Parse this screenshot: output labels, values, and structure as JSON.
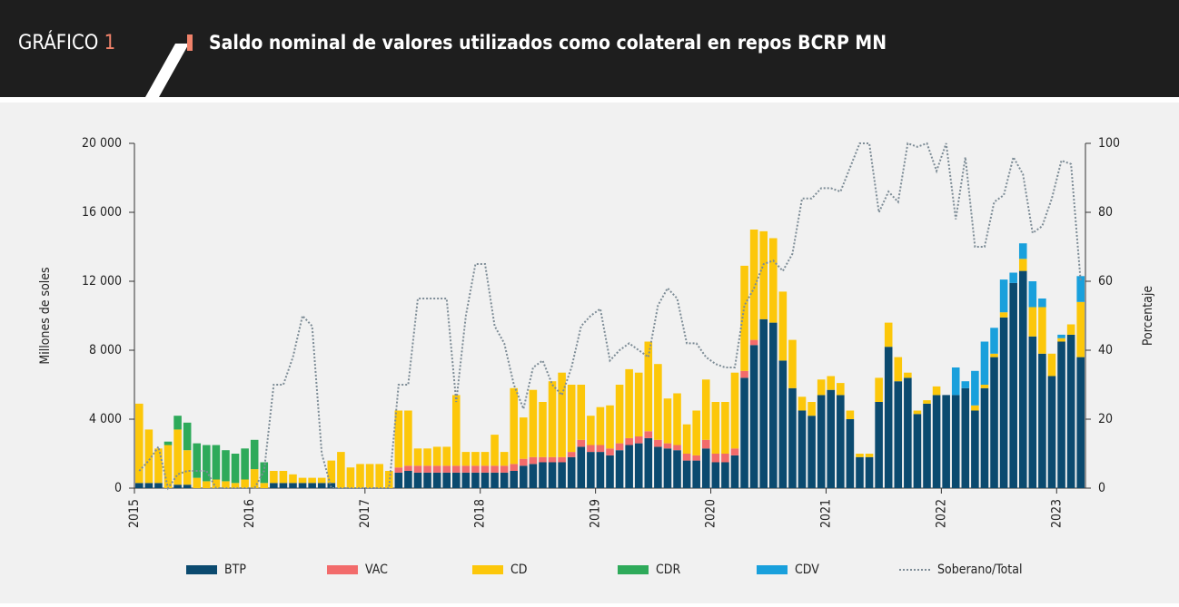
{
  "header": {
    "label": "GRÁFICO",
    "number": "1"
  },
  "chart_data": {
    "type": "bar",
    "stacked": true,
    "title": "Saldo nominal de valores utilizados como colateral en repos BCRP MN",
    "ylabel": "Millones de soles",
    "y2label": "Porcentaje",
    "categories": [
      "2015",
      null,
      null,
      null,
      null,
      null,
      null,
      null,
      null,
      null,
      null,
      null,
      "2016",
      null,
      null,
      null,
      null,
      null,
      null,
      null,
      null,
      null,
      null,
      null,
      "2017",
      null,
      null,
      null,
      null,
      null,
      null,
      null,
      null,
      null,
      null,
      null,
      "2018",
      null,
      null,
      null,
      null,
      null,
      null,
      null,
      null,
      null,
      null,
      null,
      "2019",
      null,
      null,
      null,
      null,
      null,
      null,
      null,
      null,
      null,
      null,
      null,
      "2020",
      null,
      null,
      null,
      null,
      null,
      null,
      null,
      null,
      null,
      null,
      null,
      "2021",
      null,
      null,
      null,
      null,
      null,
      null,
      null,
      null,
      null,
      null,
      null,
      "2022",
      null,
      null,
      null,
      null,
      null,
      null,
      null,
      null,
      null,
      null,
      null,
      "2023",
      null,
      null
    ],
    "ylim": [
      0,
      20000
    ],
    "yticks": [
      0,
      {
        "value": 4000,
        "label": "4 000"
      },
      {
        "value": 8000,
        "label": "8 000"
      },
      {
        "value": 12000,
        "label": "12 000"
      },
      {
        "value": 16000,
        "label": "16 000"
      },
      {
        "value": 20000,
        "label": "20 000"
      }
    ],
    "y2lim": [
      0,
      100
    ],
    "y2ticks": [
      0,
      20,
      40,
      60,
      80,
      100
    ],
    "series": [
      {
        "name": "BTP",
        "color": "#0b4a6f",
        "values": [
          300,
          300,
          300,
          0,
          200,
          200,
          0,
          0,
          0,
          0,
          0,
          0,
          0,
          0,
          300,
          300,
          300,
          300,
          300,
          300,
          300,
          0,
          0,
          0,
          0,
          0,
          0,
          900,
          1000,
          900,
          900,
          900,
          900,
          900,
          900,
          900,
          900,
          900,
          900,
          1000,
          1300,
          1400,
          1500,
          1500,
          1500,
          1800,
          2400,
          2100,
          2100,
          1900,
          2200,
          2500,
          2600,
          2900,
          2400,
          2300,
          2200,
          1600,
          1600,
          2300,
          1500,
          1500,
          1900,
          6400,
          8300,
          9800,
          9600,
          7400,
          5800,
          4500,
          4200,
          5400,
          5700,
          5400,
          4000,
          1800,
          1800,
          5000,
          8200,
          6200,
          6400,
          4300,
          4900,
          5400,
          5400,
          5400,
          5800,
          4500,
          5800,
          7600,
          9900,
          11900,
          12600,
          8800,
          7800,
          6500,
          8500,
          8900,
          7600
        ]
      },
      {
        "name": "VAC",
        "color": "#f26b6b",
        "values": [
          0,
          0,
          0,
          0,
          0,
          0,
          0,
          0,
          0,
          0,
          0,
          0,
          0,
          0,
          0,
          0,
          0,
          0,
          0,
          0,
          0,
          0,
          0,
          0,
          0,
          0,
          0,
          300,
          300,
          400,
          400,
          400,
          400,
          400,
          400,
          400,
          400,
          400,
          400,
          400,
          400,
          400,
          300,
          300,
          300,
          300,
          400,
          400,
          400,
          400,
          400,
          400,
          400,
          400,
          400,
          300,
          300,
          400,
          300,
          500,
          500,
          500,
          400,
          400,
          300,
          0,
          0,
          0,
          0,
          0,
          0,
          0,
          0,
          0,
          0,
          0,
          0,
          0,
          0,
          0,
          0,
          0,
          0,
          0,
          0,
          0,
          0,
          0,
          0,
          0,
          0,
          0,
          0,
          0,
          0,
          0,
          0,
          0,
          0
        ]
      },
      {
        "name": "CD",
        "color": "#fcc70a",
        "values": [
          4600,
          3100,
          2000,
          2500,
          3200,
          2000,
          600,
          400,
          500,
          400,
          300,
          500,
          1100,
          300,
          700,
          700,
          500,
          300,
          300,
          300,
          1300,
          2100,
          1200,
          1400,
          1400,
          1400,
          1000,
          3300,
          3200,
          1000,
          1000,
          1100,
          1100,
          4100,
          800,
          800,
          800,
          1800,
          800,
          4400,
          2400,
          3900,
          3200,
          4400,
          4900,
          3900,
          3200,
          1700,
          2200,
          2500,
          3400,
          4000,
          3700,
          5200,
          4400,
          2600,
          3000,
          1700,
          2600,
          3500,
          3000,
          3000,
          4400,
          6100,
          6400,
          5100,
          4900,
          4000,
          2800,
          800,
          800,
          900,
          800,
          700,
          500,
          200,
          200,
          1400,
          1400,
          1400,
          300,
          200,
          200,
          500,
          0,
          0,
          0,
          300,
          200,
          200,
          300,
          0,
          700,
          1700,
          2700,
          1300,
          200,
          600,
          3200
        ]
      },
      {
        "name": "CDR",
        "color": "#2eaa5a",
        "values": [
          0,
          0,
          0,
          200,
          800,
          1600,
          2000,
          2100,
          2000,
          1800,
          1700,
          1800,
          1700,
          1200,
          0,
          0,
          0,
          0,
          0,
          0,
          0,
          0,
          0,
          0,
          0,
          0,
          0,
          0,
          0,
          0,
          0,
          0,
          0,
          0,
          0,
          0,
          0,
          0,
          0,
          0,
          0,
          0,
          0,
          0,
          0,
          0,
          0,
          0,
          0,
          0,
          0,
          0,
          0,
          0,
          0,
          0,
          0,
          0,
          0,
          0,
          0,
          0,
          0,
          0,
          0,
          0,
          0,
          0,
          0,
          0,
          0,
          0,
          0,
          0,
          0,
          0,
          0,
          0,
          0,
          0,
          0,
          0,
          0,
          0,
          0,
          0,
          0,
          0,
          0,
          0,
          0,
          0,
          0,
          0,
          0,
          0,
          0,
          0,
          0
        ]
      },
      {
        "name": "CDV",
        "color": "#19a0dc",
        "values": [
          0,
          0,
          0,
          0,
          0,
          0,
          0,
          0,
          0,
          0,
          0,
          0,
          0,
          0,
          0,
          0,
          0,
          0,
          0,
          0,
          0,
          0,
          0,
          0,
          0,
          0,
          0,
          0,
          0,
          0,
          0,
          0,
          0,
          0,
          0,
          0,
          0,
          0,
          0,
          0,
          0,
          0,
          0,
          0,
          0,
          0,
          0,
          0,
          0,
          0,
          0,
          0,
          0,
          0,
          0,
          0,
          0,
          0,
          0,
          0,
          0,
          0,
          0,
          0,
          0,
          0,
          0,
          0,
          0,
          0,
          0,
          0,
          0,
          0,
          0,
          0,
          0,
          0,
          0,
          0,
          0,
          0,
          0,
          0,
          0,
          1600,
          400,
          2000,
          2500,
          1500,
          1900,
          600,
          900,
          1500,
          500,
          0,
          200,
          0,
          1500
        ]
      },
      {
        "name": "Soberano/Total",
        "color": "#7d8c96",
        "type": "line",
        "axis": "y2",
        "dash": "dotted",
        "values": [
          5,
          8,
          12,
          0,
          4,
          5,
          5,
          5,
          0,
          0,
          0,
          0,
          0,
          5,
          30,
          30,
          38,
          50,
          47,
          10,
          0,
          0,
          0,
          0,
          0,
          0,
          0,
          30,
          30,
          55,
          55,
          55,
          55,
          25,
          50,
          65,
          65,
          47,
          42,
          30,
          23,
          35,
          37,
          30,
          27,
          35,
          47,
          50,
          52,
          37,
          40,
          42,
          40,
          38,
          53,
          58,
          55,
          42,
          42,
          38,
          36,
          35,
          35,
          53,
          58,
          65,
          66,
          63,
          68,
          84,
          84,
          87,
          87,
          86,
          93,
          100,
          100,
          80,
          86,
          83,
          100,
          99,
          100,
          92,
          100,
          78,
          96,
          70,
          70,
          83,
          85,
          96,
          91,
          74,
          76,
          84,
          95,
          94,
          60
        ]
      }
    ]
  }
}
